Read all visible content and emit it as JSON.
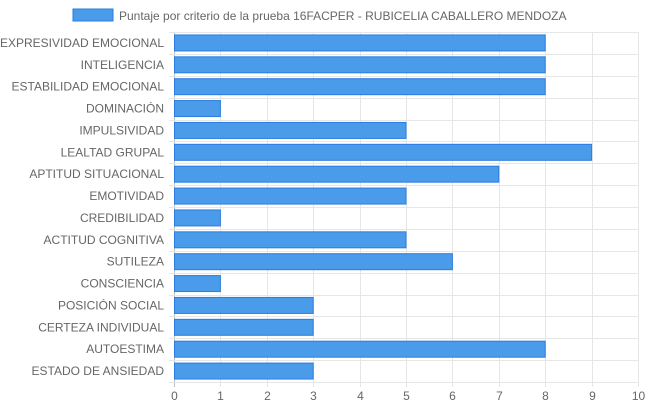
{
  "chart_data": {
    "type": "bar",
    "orientation": "horizontal",
    "categories": [
      "EXPRESIVIDAD EMOCIONAL",
      "INTELIGENCIA",
      "ESTABILIDAD EMOCIONAL",
      "DOMINACIÓN",
      "IMPULSIVIDAD",
      "LEALTAD GRUPAL",
      "APTITUD SITUACIONAL",
      "EMOTIVIDAD",
      "CREDIBILIDAD",
      "ACTITUD COGNITIVA",
      "SUTILEZA",
      "CONSCIENCIA",
      "POSICIÓN SOCIAL",
      "CERTEZA INDIVIDUAL",
      "AUTOESTIMA",
      "ESTADO DE ANSIEDAD"
    ],
    "series": [
      {
        "name": "Puntaje por criterio de la prueba 16FACPER - RUBICELIA CABALLERO MENDOZA",
        "values": [
          8,
          8,
          8,
          1,
          5,
          9,
          7,
          5,
          1,
          5,
          6,
          1,
          3,
          3,
          8,
          3
        ],
        "color": "#4a9bea",
        "border_color": "#2b7de0"
      }
    ],
    "x_ticks": [
      "0",
      "1",
      "2",
      "3",
      "4",
      "5",
      "6",
      "7",
      "8",
      "9",
      "10"
    ],
    "xlim": [
      0,
      10
    ],
    "grid": true,
    "legend_position": "top"
  }
}
